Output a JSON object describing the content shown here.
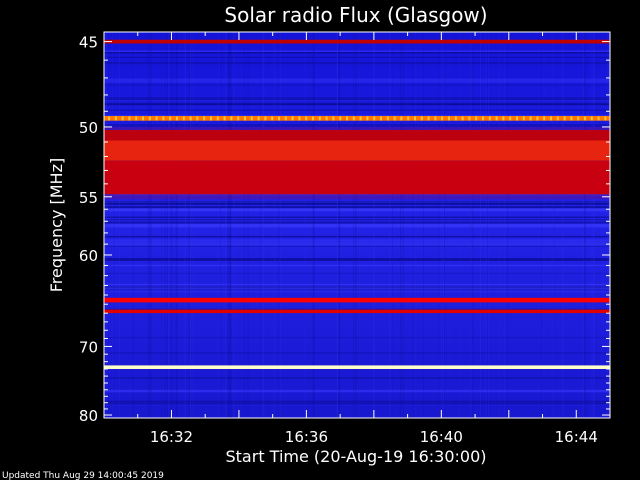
{
  "chart_data": {
    "type": "heatmap",
    "title": "Solar radio Flux (Glasgow)",
    "xlabel": "Start Time (20-Aug-19 16:30:00)",
    "ylabel": "Frequency [MHz]",
    "x_ticks": [
      "16:32",
      "16:36",
      "16:40",
      "16:44"
    ],
    "x_tick_minutes": [
      2,
      6,
      10,
      14
    ],
    "xlim_minutes": [
      0,
      15
    ],
    "y_ticks": [
      45,
      50,
      55,
      60,
      70,
      80
    ],
    "ylim": [
      44.5,
      80.5
    ],
    "y_scale": "reciprocal",
    "colormap": "blue-red-yellow-white",
    "bands": [
      {
        "f_low": 44.9,
        "f_high": 45.1,
        "color": "#c00000"
      },
      {
        "f_low": 49.3,
        "f_high": 49.6,
        "color": "#ff7b00"
      },
      {
        "f_low": 50.2,
        "f_high": 50.9,
        "color": "#c60000"
      },
      {
        "f_low": 50.9,
        "f_high": 52.3,
        "color": "#ff3000"
      },
      {
        "f_low": 52.3,
        "f_high": 54.8,
        "color": "#d80000"
      },
      {
        "f_low": 64.3,
        "f_high": 64.8,
        "color": "#ff0000"
      },
      {
        "f_low": 65.6,
        "f_high": 66.0,
        "color": "#e00000"
      },
      {
        "f_low": 72.5,
        "f_high": 73.0,
        "color": "#ffffc8"
      }
    ],
    "background_color": "#1e1ee0"
  },
  "footer": "Updated Thu Aug 29 14:00:45 2019"
}
